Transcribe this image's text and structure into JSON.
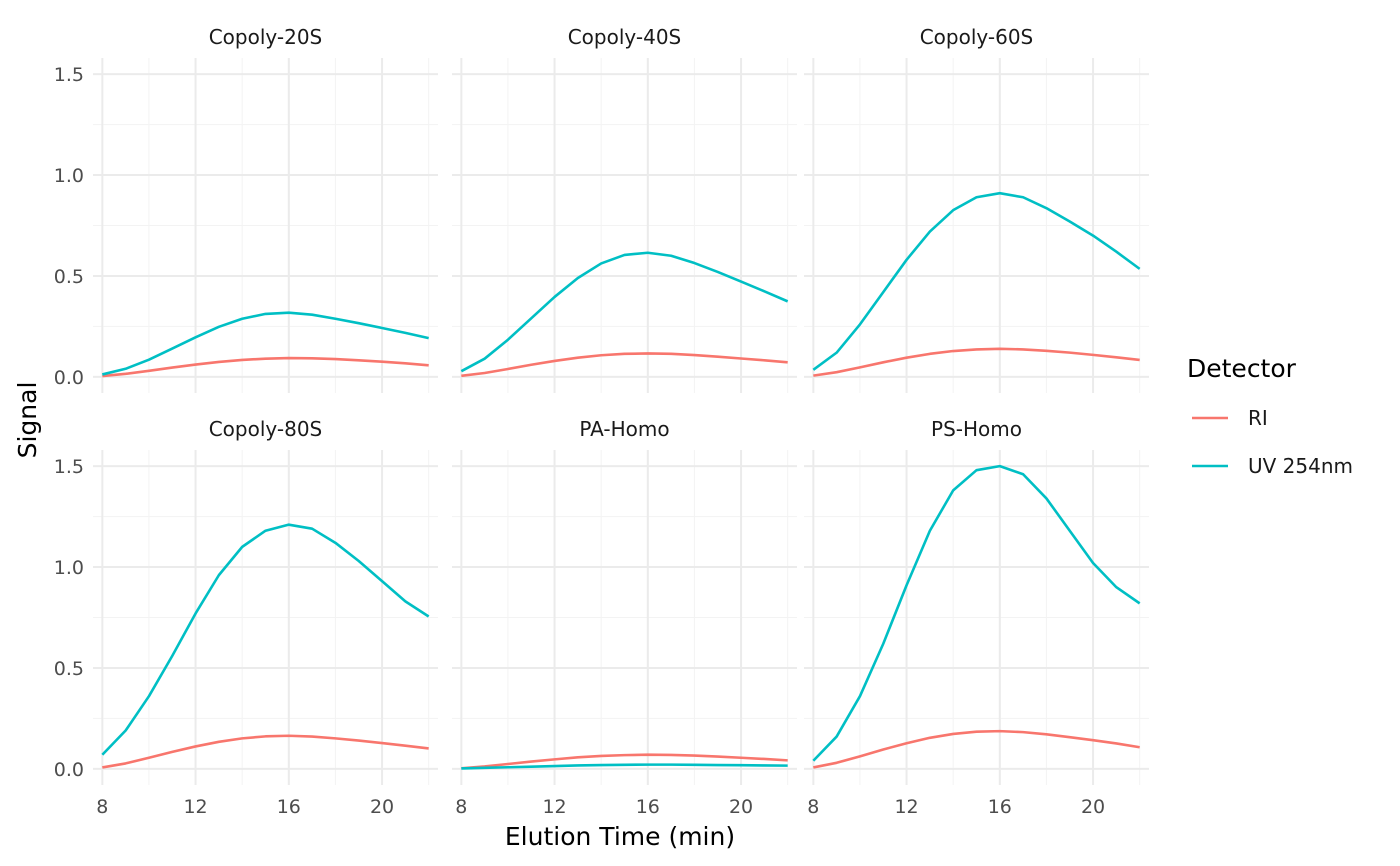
{
  "chart_data": {
    "type": "line",
    "xlabel": "Elution Time (min)",
    "ylabel": "Signal",
    "xlim": [
      7.6,
      22.4
    ],
    "ylim": [
      -0.08,
      1.58
    ],
    "x_ticks": [
      8,
      12,
      16,
      20
    ],
    "x_tick_labels": [
      "8",
      "12",
      "16",
      "20"
    ],
    "y_ticks": [
      0.0,
      0.5,
      1.0,
      1.5
    ],
    "y_tick_labels": [
      "0.0",
      "0.5",
      "1.0",
      "1.5"
    ],
    "grid": true,
    "legend": {
      "title": "Detector",
      "placement": "right",
      "entries": [
        {
          "label": "RI",
          "color": "#F8766D"
        },
        {
          "label": "UV 254nm",
          "color": "#00BFC4"
        }
      ]
    },
    "x": [
      8,
      9,
      10,
      11,
      12,
      13,
      14,
      15,
      16,
      17,
      18,
      19,
      20,
      21,
      22
    ],
    "panels": [
      {
        "title": "Copoly-20S",
        "series": [
          {
            "name": "RI",
            "values": [
              0.004,
              0.015,
              0.03,
              0.046,
              0.061,
              0.074,
              0.084,
              0.09,
              0.093,
              0.092,
              0.088,
              0.082,
              0.075,
              0.067,
              0.057
            ]
          },
          {
            "name": "UV 254nm",
            "values": [
              0.012,
              0.04,
              0.085,
              0.14,
              0.196,
              0.248,
              0.288,
              0.312,
              0.318,
              0.308,
              0.288,
              0.266,
              0.242,
              0.218,
              0.192
            ]
          }
        ]
      },
      {
        "title": "Copoly-40S",
        "series": [
          {
            "name": "RI",
            "values": [
              0.005,
              0.019,
              0.039,
              0.06,
              0.079,
              0.095,
              0.107,
              0.114,
              0.116,
              0.114,
              0.108,
              0.1,
              0.091,
              0.082,
              0.072
            ]
          },
          {
            "name": "UV 254nm",
            "values": [
              0.028,
              0.09,
              0.184,
              0.29,
              0.396,
              0.49,
              0.562,
              0.604,
              0.615,
              0.6,
              0.564,
              0.52,
              0.472,
              0.424,
              0.374
            ]
          }
        ]
      },
      {
        "title": "Copoly-60S",
        "series": [
          {
            "name": "RI",
            "values": [
              0.006,
              0.023,
              0.047,
              0.072,
              0.095,
              0.114,
              0.128,
              0.136,
              0.139,
              0.136,
              0.129,
              0.12,
              0.109,
              0.097,
              0.084
            ]
          },
          {
            "name": "UV 254nm",
            "values": [
              0.035,
              0.12,
              0.26,
              0.42,
              0.58,
              0.72,
              0.826,
              0.89,
              0.91,
              0.89,
              0.836,
              0.77,
              0.7,
              0.62,
              0.535
            ]
          }
        ]
      },
      {
        "title": "Copoly-80S",
        "series": [
          {
            "name": "RI",
            "values": [
              0.007,
              0.027,
              0.055,
              0.084,
              0.111,
              0.134,
              0.151,
              0.161,
              0.164,
              0.16,
              0.151,
              0.14,
              0.128,
              0.115,
              0.101
            ]
          },
          {
            "name": "UV 254nm",
            "values": [
              0.07,
              0.19,
              0.36,
              0.56,
              0.77,
              0.96,
              1.1,
              1.18,
              1.21,
              1.19,
              1.12,
              1.03,
              0.93,
              0.83,
              0.755
            ]
          }
        ]
      },
      {
        "title": "PA-Homo",
        "series": [
          {
            "name": "RI",
            "values": [
              0.003,
              0.012,
              0.024,
              0.036,
              0.047,
              0.057,
              0.064,
              0.068,
              0.07,
              0.069,
              0.066,
              0.061,
              0.055,
              0.049,
              0.042
            ]
          },
          {
            "name": "UV 254nm",
            "values": [
              0.002,
              0.005,
              0.008,
              0.011,
              0.014,
              0.017,
              0.019,
              0.02,
              0.021,
              0.021,
              0.02,
              0.019,
              0.018,
              0.017,
              0.016
            ]
          }
        ]
      },
      {
        "title": "PS-Homo",
        "series": [
          {
            "name": "RI",
            "values": [
              0.007,
              0.03,
              0.062,
              0.096,
              0.127,
              0.154,
              0.173,
              0.184,
              0.187,
              0.182,
              0.171,
              0.157,
              0.142,
              0.126,
              0.107
            ]
          },
          {
            "name": "UV 254nm",
            "values": [
              0.04,
              0.16,
              0.36,
              0.62,
              0.91,
              1.18,
              1.38,
              1.48,
              1.5,
              1.46,
              1.34,
              1.18,
              1.02,
              0.9,
              0.82
            ]
          }
        ]
      }
    ]
  }
}
